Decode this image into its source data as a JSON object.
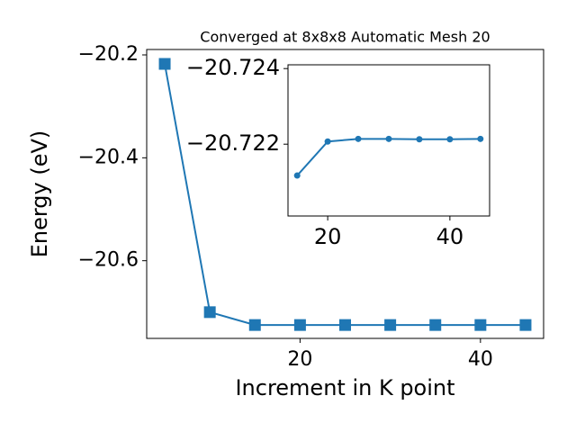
{
  "chart_data": [
    {
      "type": "line",
      "title": "Converged at 8x8x8 Automatic Mesh 20",
      "x_label": "Increment in K point",
      "y_label": "Energy (eV)",
      "x": [
        5,
        10,
        15,
        20,
        25,
        30,
        35,
        40,
        45
      ],
      "series": [
        {
          "color": "#1f77b4",
          "marker": "square",
          "values": [
            -20.2175,
            -20.7,
            -20.725,
            -20.725,
            -20.725,
            -20.725,
            -20.725,
            -20.725,
            -20.725
          ]
        }
      ],
      "xlim": [
        3,
        47
      ],
      "xticks": [
        20,
        40
      ],
      "ylim": [
        -20.751,
        -20.1895
      ],
      "yticks": [
        {
          "value": -20.2,
          "label": "−20.2"
        },
        {
          "value": -20.4,
          "label": "−20.4"
        },
        {
          "value": -20.6,
          "label": "−20.6"
        }
      ]
    },
    {
      "type": "line",
      "x": [
        15,
        20,
        25,
        30,
        35,
        40,
        45
      ],
      "series": [
        {
          "color": "#1f77b4",
          "marker": "circle",
          "values": [
            -20.72117,
            -20.72207,
            -20.72214,
            -20.72214,
            -20.72213,
            -20.72213,
            -20.72214
          ]
        }
      ],
      "xlim": [
        13.5,
        46.5
      ],
      "xticks": [
        20,
        40
      ],
      "ylim": [
        -20.7201,
        -20.7241
      ],
      "yticks": [
        {
          "value": -20.724,
          "label": "−20.724"
        },
        {
          "value": -20.722,
          "label": "−20.722"
        }
      ]
    }
  ]
}
